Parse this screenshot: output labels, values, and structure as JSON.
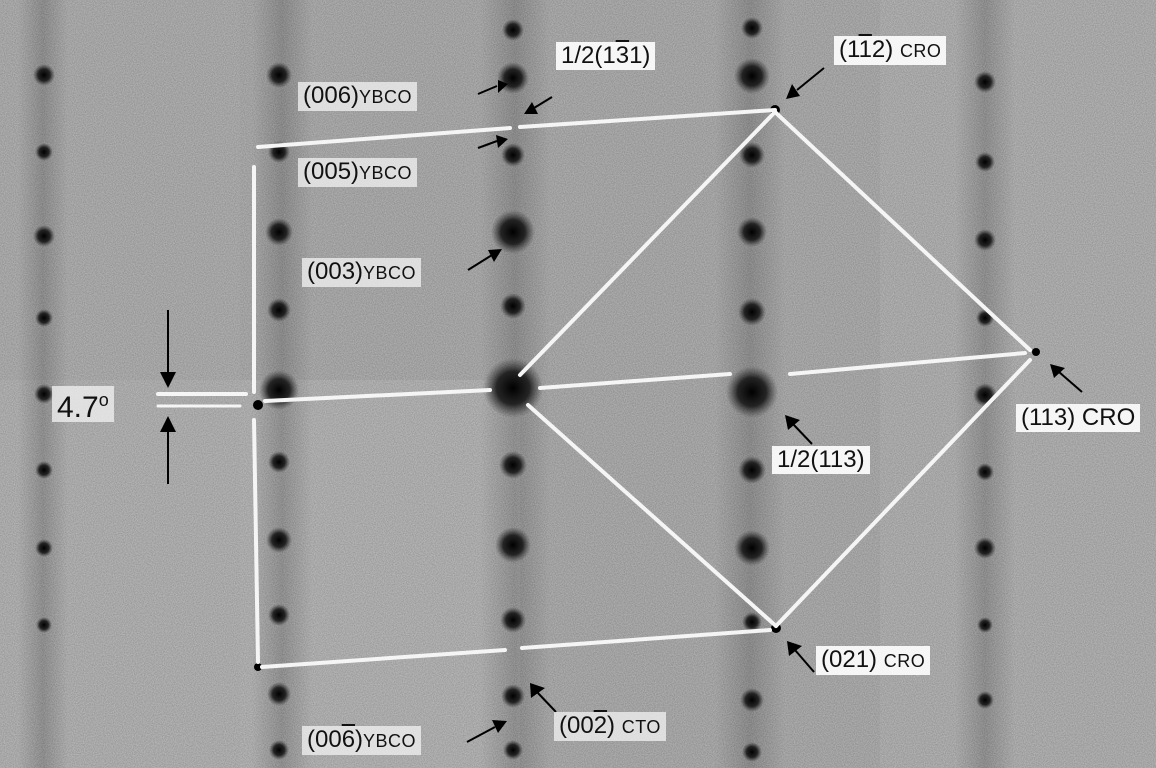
{
  "image": {
    "description_free": true,
    "colors": {
      "background": "#9a9a9a",
      "spot": "#111111",
      "line": "#f5f5f5",
      "label_bg": "#f6f6f6"
    }
  },
  "labels": {
    "l_112_cro": {
      "pre": "(1",
      "over1": "1",
      "mid": "",
      "over2": "",
      "post": "2)",
      "rest": "1",
      "suffix": " CRO",
      "text_a": "(1",
      "text_b": "1",
      "text_c": "2)"
    },
    "l_131": {
      "text_a": "1/2(1",
      "text_b": "3",
      "text_c": "1)"
    },
    "l_006": {
      "text_a": "(006)",
      "text_b": "YBCO"
    },
    "l_005": {
      "text_a": "(005)",
      "text_b": "YBCO"
    },
    "l_003": {
      "text_a": "(003)",
      "text_b": "YBCO"
    },
    "l_angle": {
      "text": "4.7",
      "deg": "o"
    },
    "l_half113": {
      "text": "1/2(113)"
    },
    "l_113_cro": {
      "text": "(113) CRO"
    },
    "l_021_cro": {
      "text_a": "(021)",
      "text_b": "CRO"
    },
    "l_006bar": {
      "text_a": "(00",
      "text_b": "6",
      "text_c": ")",
      "text_d": "YBCO"
    },
    "l_002bar": {
      "text_a": "(00",
      "text_b": "2",
      "text_c": ")",
      "text_d": "CTO"
    },
    "l_112": {
      "text_a": "(1",
      "text_b": "1",
      "text_c": "2)",
      "text_d": "CRO"
    }
  }
}
